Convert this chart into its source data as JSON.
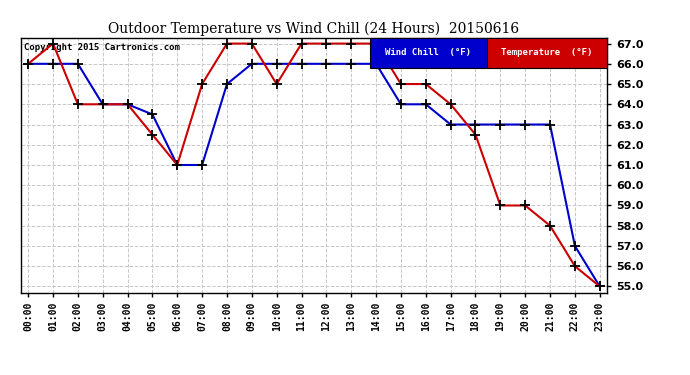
{
  "title": "Outdoor Temperature vs Wind Chill (24 Hours)  20150616",
  "copyright": "Copyright 2015 Cartronics.com",
  "background_color": "#ffffff",
  "plot_bg_color": "#ffffff",
  "grid_color": "#c8c8c8",
  "ylim": [
    55.0,
    67.0
  ],
  "yticks": [
    55.0,
    56.0,
    57.0,
    58.0,
    59.0,
    60.0,
    61.0,
    62.0,
    63.0,
    64.0,
    65.0,
    66.0,
    67.0
  ],
  "hours": [
    "00:00",
    "01:00",
    "02:00",
    "03:00",
    "04:00",
    "05:00",
    "06:00",
    "07:00",
    "08:00",
    "09:00",
    "10:00",
    "11:00",
    "12:00",
    "13:00",
    "14:00",
    "15:00",
    "16:00",
    "17:00",
    "18:00",
    "19:00",
    "20:00",
    "21:00",
    "22:00",
    "23:00"
  ],
  "temperature": [
    66.0,
    67.0,
    64.0,
    64.0,
    64.0,
    62.5,
    61.0,
    65.0,
    67.0,
    67.0,
    65.0,
    67.0,
    67.0,
    67.0,
    67.0,
    65.0,
    65.0,
    64.0,
    62.5,
    59.0,
    59.0,
    58.0,
    56.0,
    55.0
  ],
  "wind_chill": [
    66.0,
    66.0,
    66.0,
    64.0,
    64.0,
    63.5,
    61.0,
    61.0,
    65.0,
    66.0,
    66.0,
    66.0,
    66.0,
    66.0,
    66.0,
    64.0,
    64.0,
    63.0,
    63.0,
    63.0,
    63.0,
    63.0,
    57.0,
    55.0
  ],
  "temp_color": "#cc0000",
  "wc_color": "#0000cc",
  "legend_wc_bg": "#0000cc",
  "legend_temp_bg": "#cc0000",
  "legend_wc_text": "Wind Chill  (°F)",
  "legend_temp_text": "Temperature  (°F)"
}
